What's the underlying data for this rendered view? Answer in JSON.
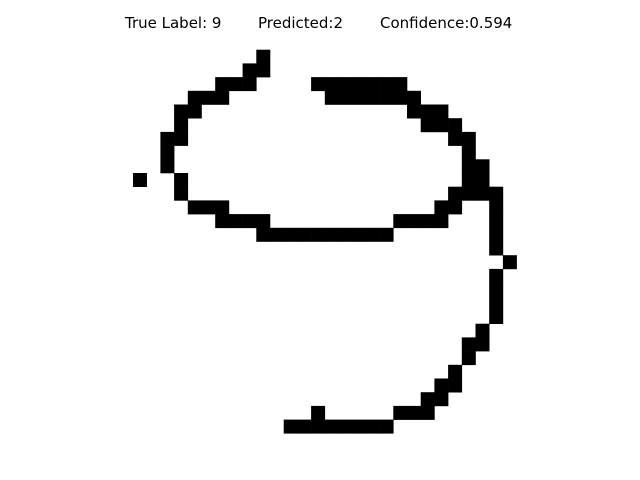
{
  "title": {
    "true_label": "True Label: 9",
    "predicted": "Predicted:2",
    "confidence": "Confidence:0.594"
  },
  "image": {
    "grid_size": 28,
    "ink_color": "#000000",
    "background_color": "#ffffff",
    "ink_pixels": [
      [
        1,
        9
      ],
      [
        2,
        8
      ],
      [
        2,
        9
      ],
      [
        3,
        6
      ],
      [
        3,
        7
      ],
      [
        3,
        8
      ],
      [
        3,
        13
      ],
      [
        3,
        14
      ],
      [
        3,
        15
      ],
      [
        3,
        16
      ],
      [
        3,
        17
      ],
      [
        3,
        18
      ],
      [
        3,
        19
      ],
      [
        4,
        4
      ],
      [
        4,
        5
      ],
      [
        4,
        6
      ],
      [
        4,
        14
      ],
      [
        4,
        15
      ],
      [
        4,
        16
      ],
      [
        4,
        17
      ],
      [
        4,
        18
      ],
      [
        4,
        19
      ],
      [
        4,
        20
      ],
      [
        5,
        3
      ],
      [
        5,
        4
      ],
      [
        5,
        20
      ],
      [
        5,
        21
      ],
      [
        5,
        22
      ],
      [
        6,
        3
      ],
      [
        6,
        21
      ],
      [
        6,
        22
      ],
      [
        6,
        23
      ],
      [
        7,
        2
      ],
      [
        7,
        3
      ],
      [
        7,
        23
      ],
      [
        7,
        24
      ],
      [
        8,
        2
      ],
      [
        8,
        24
      ],
      [
        9,
        2
      ],
      [
        9,
        24
      ],
      [
        9,
        25
      ],
      [
        10,
        0
      ],
      [
        10,
        3
      ],
      [
        10,
        24
      ],
      [
        10,
        25
      ],
      [
        11,
        3
      ],
      [
        11,
        23
      ],
      [
        11,
        24
      ],
      [
        11,
        25
      ],
      [
        11,
        26
      ],
      [
        12,
        4
      ],
      [
        12,
        5
      ],
      [
        12,
        6
      ],
      [
        12,
        22
      ],
      [
        12,
        23
      ],
      [
        12,
        26
      ],
      [
        13,
        6
      ],
      [
        13,
        7
      ],
      [
        13,
        8
      ],
      [
        13,
        9
      ],
      [
        13,
        19
      ],
      [
        13,
        20
      ],
      [
        13,
        21
      ],
      [
        13,
        22
      ],
      [
        13,
        26
      ],
      [
        14,
        9
      ],
      [
        14,
        10
      ],
      [
        14,
        11
      ],
      [
        14,
        12
      ],
      [
        14,
        13
      ],
      [
        14,
        14
      ],
      [
        14,
        15
      ],
      [
        14,
        16
      ],
      [
        14,
        17
      ],
      [
        14,
        18
      ],
      [
        14,
        26
      ],
      [
        15,
        26
      ],
      [
        16,
        27
      ],
      [
        17,
        26
      ],
      [
        18,
        26
      ],
      [
        19,
        26
      ],
      [
        20,
        26
      ],
      [
        21,
        25
      ],
      [
        22,
        24
      ],
      [
        22,
        25
      ],
      [
        23,
        24
      ],
      [
        24,
        23
      ],
      [
        25,
        22
      ],
      [
        25,
        23
      ],
      [
        26,
        21
      ],
      [
        26,
        22
      ],
      [
        27,
        19
      ],
      [
        27,
        20
      ],
      [
        27,
        21
      ],
      [
        27,
        13
      ],
      [
        28,
        11
      ],
      [
        28,
        12
      ],
      [
        28,
        13
      ],
      [
        28,
        14
      ],
      [
        28,
        15
      ],
      [
        28,
        16
      ],
      [
        28,
        17
      ],
      [
        28,
        18
      ]
    ]
  }
}
